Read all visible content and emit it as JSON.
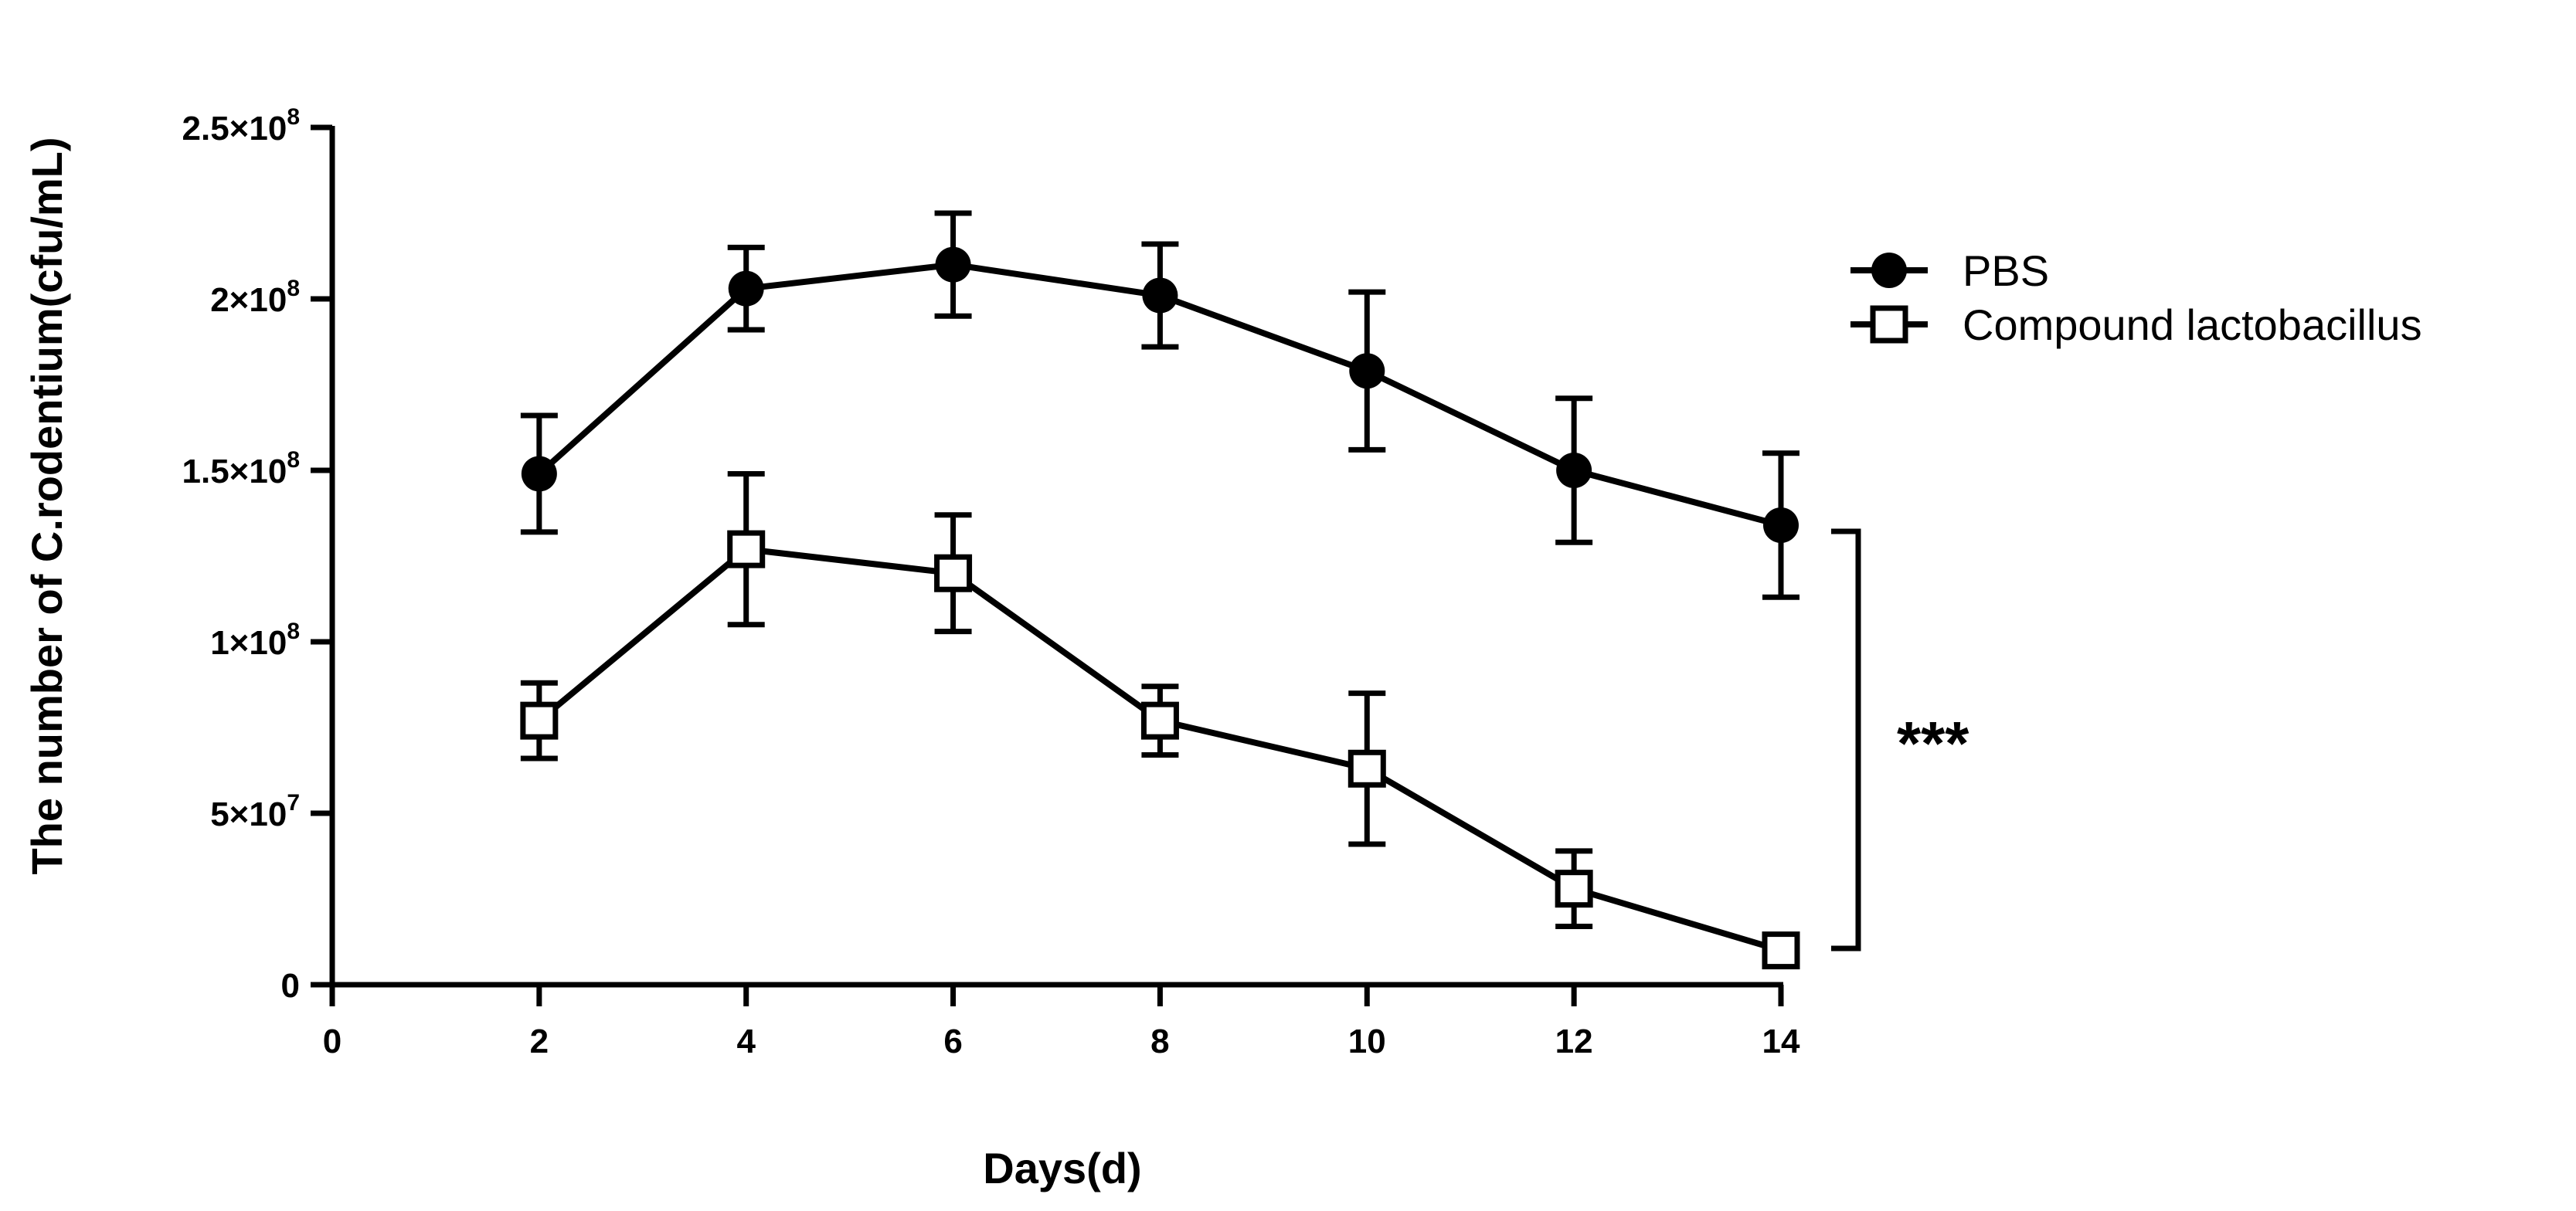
{
  "chart_data": {
    "type": "line",
    "title": "",
    "xlabel": "Days(d)",
    "ylabel": "The number of C.rodentium(cfu/mL)",
    "xlim": [
      0,
      14
    ],
    "ylim": [
      0,
      250000000
    ],
    "x_ticks": [
      0,
      2,
      4,
      6,
      8,
      10,
      12,
      14
    ],
    "x_tick_labels": [
      "0",
      "2",
      "4",
      "6",
      "8",
      "10",
      "12",
      "14"
    ],
    "y_ticks": [
      0,
      50000000,
      100000000,
      150000000,
      200000000,
      250000000
    ],
    "y_tick_labels": [
      {
        "mantissa": "0",
        "exponent": ""
      },
      {
        "mantissa": "5×10",
        "exponent": "7"
      },
      {
        "mantissa": "1×10",
        "exponent": "8"
      },
      {
        "mantissa": "1.5×10",
        "exponent": "8"
      },
      {
        "mantissa": "2×10",
        "exponent": "8"
      },
      {
        "mantissa": "2.5×10",
        "exponent": "8"
      }
    ],
    "grid": false,
    "legend_position": "top-right",
    "series": [
      {
        "name": "PBS",
        "marker": "filled-circle",
        "x": [
          2,
          4,
          6,
          8,
          10,
          12,
          14
        ],
        "values": [
          149000000,
          203000000,
          210000000,
          201000000,
          179000000,
          150000000,
          134000000
        ],
        "errors": [
          17000000,
          12000000,
          15000000,
          15000000,
          23000000,
          21000000,
          21000000
        ]
      },
      {
        "name": "Compound lactobacillus",
        "marker": "open-square",
        "x": [
          2,
          4,
          6,
          8,
          10,
          12,
          14
        ],
        "values": [
          77000000,
          127000000,
          120000000,
          77000000,
          63000000,
          28000000,
          10000000
        ],
        "errors": [
          11000000,
          22000000,
          17000000,
          10000000,
          22000000,
          11000000,
          0
        ]
      }
    ],
    "annotation": {
      "text": "***",
      "between": [
        "PBS",
        "Compound lactobacillus"
      ],
      "at_x": 14
    }
  }
}
